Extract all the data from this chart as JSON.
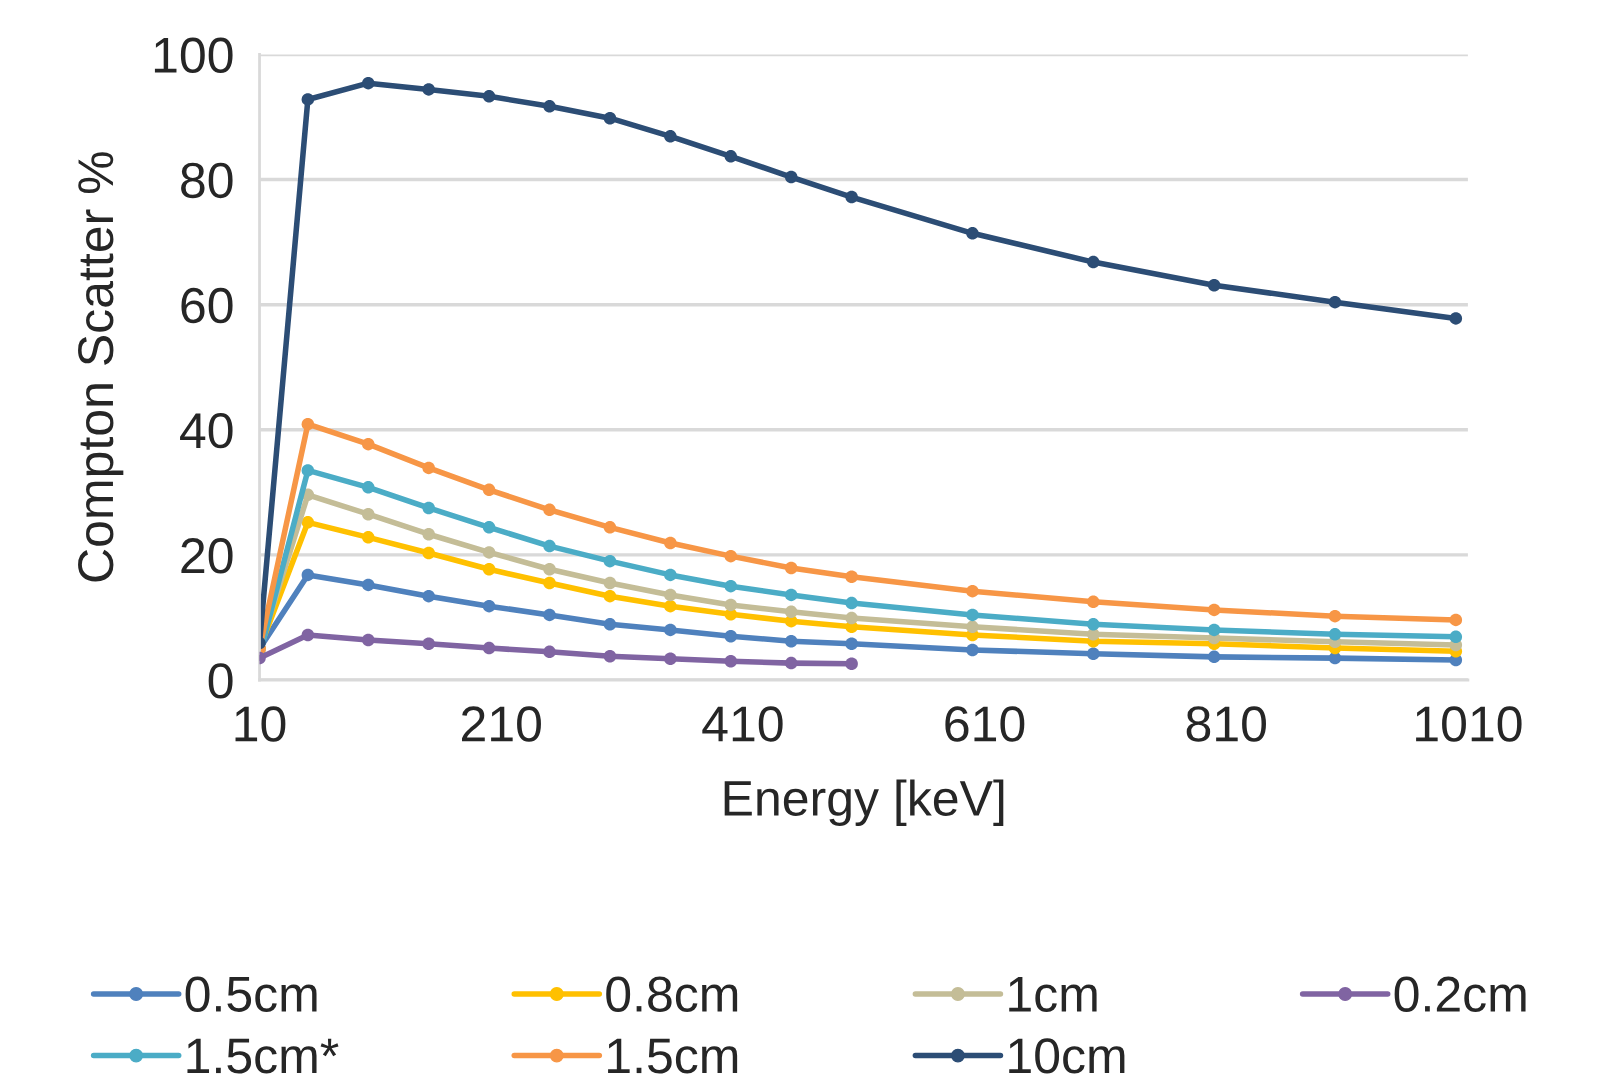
{
  "chart_data": {
    "type": "line",
    "xlabel": "Energy [keV]",
    "ylabel": "Compton Scatter %",
    "x": [
      10,
      50,
      100,
      150,
      200,
      250,
      300,
      350,
      400,
      450,
      500,
      600,
      700,
      800,
      900,
      1000
    ],
    "xlim": [
      10,
      1010
    ],
    "xticks": [
      10,
      210,
      410,
      610,
      810,
      1010
    ],
    "ylim": [
      0,
      100
    ],
    "yticks": [
      0,
      20,
      40,
      60,
      80,
      100
    ],
    "grid": "y",
    "legend": "bottom",
    "marker": "circle",
    "line_style": "solid",
    "series": [
      {
        "name": "0.5cm",
        "color": "#4f81bd",
        "values": [
          5,
          16.8,
          15.2,
          13.4,
          11.8,
          10.4,
          8.9,
          8.0,
          7.0,
          6.2,
          5.8,
          4.8,
          4.2,
          3.7,
          3.5,
          3.2
        ]
      },
      {
        "name": "0.8cm",
        "color": "#ffc000",
        "values": [
          5,
          25.2,
          22.8,
          20.3,
          17.7,
          15.5,
          13.4,
          11.8,
          10.5,
          9.4,
          8.5,
          7.2,
          6.2,
          5.8,
          5.1,
          4.6
        ]
      },
      {
        "name": "1cm",
        "color": "#c4bd97",
        "values": [
          5,
          29.6,
          26.5,
          23.3,
          20.4,
          17.7,
          15.5,
          13.6,
          12.0,
          10.9,
          9.9,
          8.5,
          7.3,
          6.7,
          6.1,
          5.6
        ]
      },
      {
        "name": "0.2cm",
        "color": "#8064a2",
        "values": [
          3.5,
          7.2,
          6.4,
          5.8,
          5.1,
          4.5,
          3.8,
          3.4,
          3.0,
          2.7,
          2.6,
          null,
          null,
          null,
          null,
          null
        ]
      },
      {
        "name": "1.5cm*",
        "color": "#4bacc6",
        "values": [
          4,
          33.5,
          30.8,
          27.5,
          24.4,
          21.4,
          19.0,
          16.8,
          15.0,
          13.6,
          12.3,
          10.4,
          8.9,
          8.0,
          7.3,
          6.9
        ]
      },
      {
        "name": "1.5cm",
        "color": "#f79646",
        "values": [
          5,
          40.9,
          37.7,
          33.9,
          30.4,
          27.2,
          24.4,
          21.9,
          19.8,
          17.9,
          16.5,
          14.2,
          12.5,
          11.2,
          10.2,
          9.6
        ]
      },
      {
        "name": "10cm",
        "color": "#2c4d75",
        "values": [
          5.9,
          92.8,
          95.4,
          94.4,
          93.3,
          91.7,
          89.8,
          86.9,
          83.7,
          80.4,
          77.2,
          71.4,
          66.8,
          63.1,
          60.4,
          57.8
        ]
      }
    ]
  }
}
